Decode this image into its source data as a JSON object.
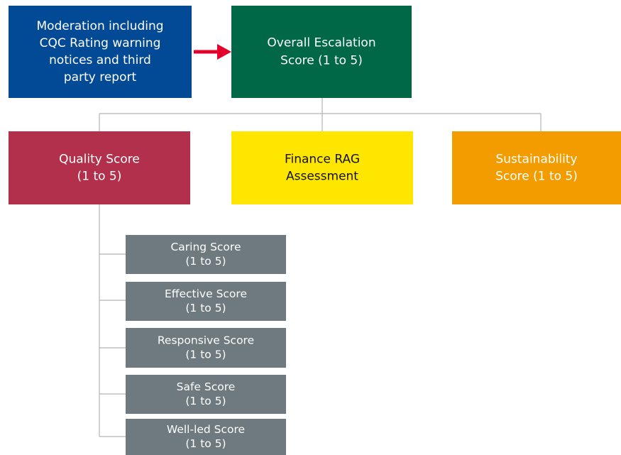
{
  "nodes": [
    {
      "lines": [
        "Moderation including",
        "CQC Rating warning",
        "notices and third",
        "party report"
      ]
    },
    {
      "lines": [
        "Overall Escalation",
        "Score (1 to 5)"
      ]
    },
    {
      "lines": [
        "Quality Score",
        "(1 to 5)"
      ]
    },
    {
      "lines": [
        "Finance RAG",
        "Assessment"
      ]
    },
    {
      "lines": [
        "Sustainability",
        "Score (1 to 5)"
      ]
    },
    {
      "lines": [
        "Caring Score",
        "(1 to 5)"
      ]
    },
    {
      "lines": [
        "Effective Score",
        "(1 to 5)"
      ]
    },
    {
      "lines": [
        "Responsive Score",
        "(1 to 5)"
      ]
    },
    {
      "lines": [
        "Safe Score",
        "(1 to 5)"
      ]
    },
    {
      "lines": [
        "Well-led Score",
        "(1 to 5)"
      ]
    }
  ]
}
